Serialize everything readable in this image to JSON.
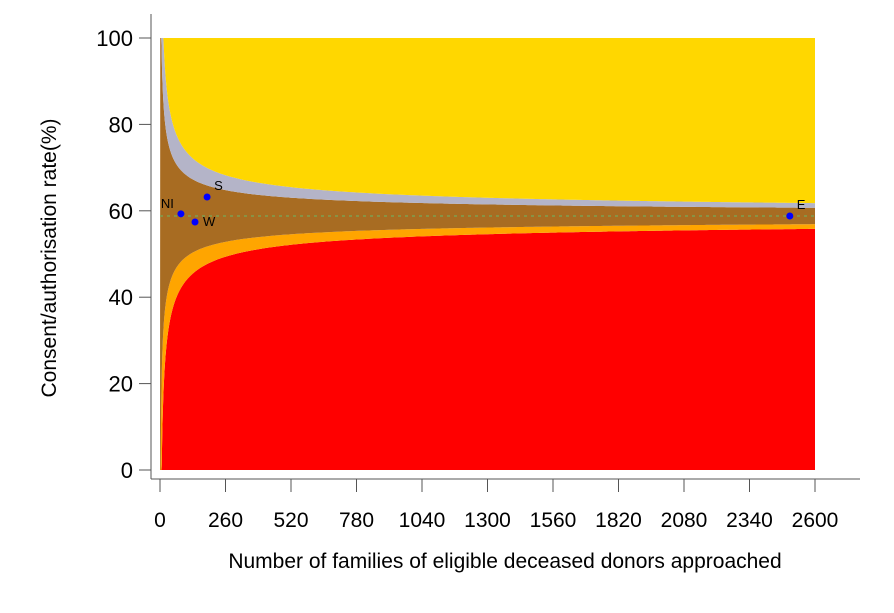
{
  "chart_data": {
    "type": "area",
    "subtype": "funnel plot",
    "title": "",
    "xlabel": "Number of families of eligible deceased donors approached",
    "ylabel": "Consent/authorisation rate(%)",
    "xlim": [
      0,
      2600
    ],
    "ylim": [
      0,
      100
    ],
    "xticks": [
      0,
      260,
      520,
      780,
      1040,
      1300,
      1560,
      1820,
      2080,
      2340,
      2600
    ],
    "yticks": [
      0,
      20,
      40,
      60,
      80,
      100
    ],
    "grid": false,
    "mean_rate": 58.8,
    "control_limits_sd": [
      1.96,
      3.09
    ],
    "bands": [
      {
        "region": "below lower 99.8% limit",
        "color": "#FF0000"
      },
      {
        "region": "between lower 99.8% and 95% limits",
        "color": "#FFA500"
      },
      {
        "region": "within 95% limits",
        "color": "#A86C22"
      },
      {
        "region": "between upper 95% and 99.8% limits",
        "color": "#B4B4C8"
      },
      {
        "region": "above upper 99.8% limit",
        "color": "#FFD700"
      }
    ],
    "mean_line_color": "#7F9F4F",
    "point_color": "#0000FF",
    "points": [
      {
        "label": "NI",
        "x": 83,
        "y": 59.3
      },
      {
        "label": "W",
        "x": 139,
        "y": 57.4
      },
      {
        "label": "S",
        "x": 187,
        "y": 63.2
      },
      {
        "label": "E",
        "x": 2500,
        "y": 58.8
      }
    ]
  }
}
